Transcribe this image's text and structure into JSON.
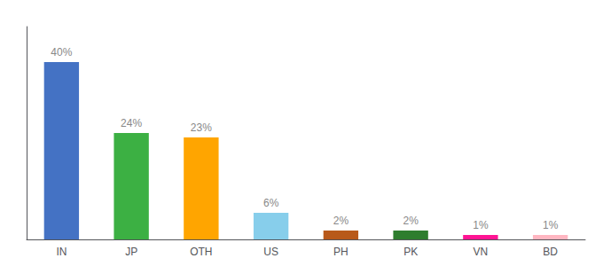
{
  "chart_data": {
    "type": "bar",
    "categories": [
      "IN",
      "JP",
      "OTH",
      "US",
      "PH",
      "PK",
      "VN",
      "BD"
    ],
    "values": [
      40,
      24,
      23,
      6,
      2,
      2,
      1,
      1
    ],
    "value_labels": [
      "40%",
      "24%",
      "23%",
      "6%",
      "2%",
      "2%",
      "1%",
      "1%"
    ],
    "colors": [
      "#4472C4",
      "#3CB043",
      "#FFA500",
      "#87CEEB",
      "#B8591A",
      "#2E7D2E",
      "#FF1493",
      "#FFB6C1"
    ],
    "ylim": [
      0,
      48
    ],
    "data_labels": true,
    "tick_labels": "x",
    "grid": false
  }
}
